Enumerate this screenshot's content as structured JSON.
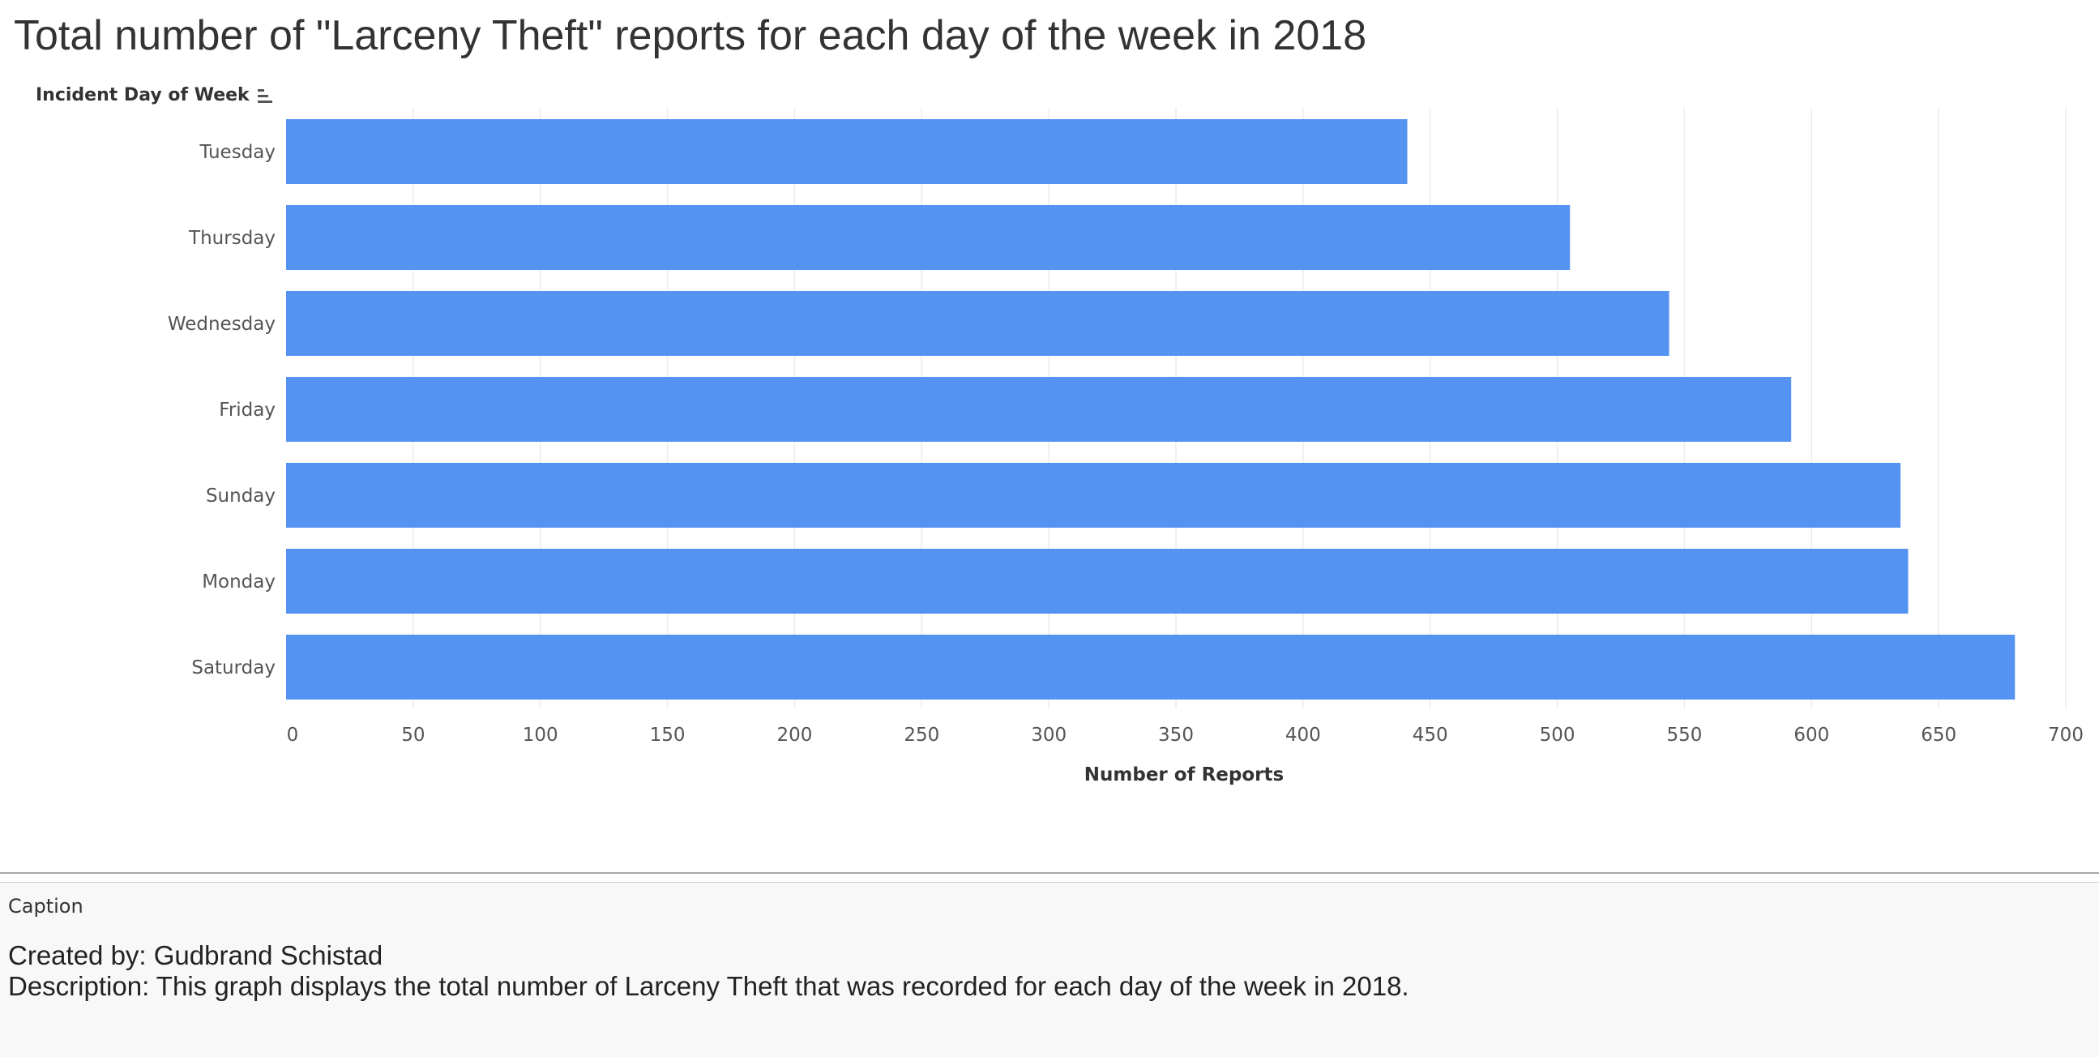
{
  "chart_data": {
    "type": "bar",
    "orientation": "horizontal",
    "title": "Total number of \"Larceny Theft\" reports for each day of the week in 2018",
    "row_header": "Incident Day of Week",
    "xlabel": "Number of Reports",
    "categories": [
      "Tuesday",
      "Thursday",
      "Wednesday",
      "Friday",
      "Sunday",
      "Monday",
      "Saturday"
    ],
    "values": [
      441,
      505,
      544,
      592,
      635,
      638,
      680
    ],
    "xlim": [
      0,
      700
    ],
    "xticks": [
      0,
      50,
      100,
      150,
      200,
      250,
      300,
      350,
      400,
      450,
      500,
      550,
      600,
      650,
      700
    ],
    "grid": "vertical",
    "bar_color": "#5593f3"
  },
  "caption": {
    "label": "Caption",
    "lines": [
      "Created by: Gudbrand Schistad",
      "Description: This graph displays the total number of Larceny Theft that was recorded for each day of the week in 2018."
    ]
  }
}
